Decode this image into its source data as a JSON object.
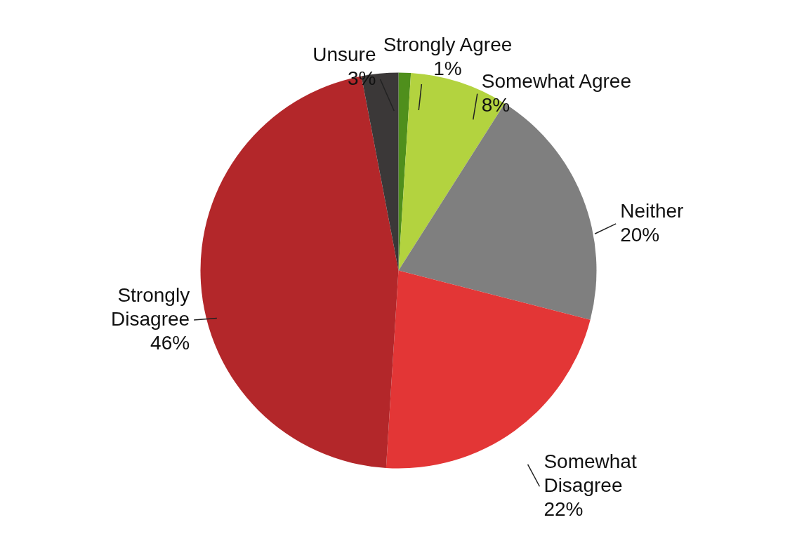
{
  "chart_data": {
    "type": "pie",
    "categories": [
      "Strongly Agree",
      "Somewhat Agree",
      "Neither",
      "Somewhat Disagree",
      "Strongly Disagree",
      "Unsure"
    ],
    "values": [
      1,
      8,
      20,
      22,
      46,
      3
    ],
    "value_labels": [
      "1%",
      "8%",
      "20%",
      "22%",
      "46%",
      "3%"
    ],
    "colors": [
      "#4f8f1c",
      "#b3d33f",
      "#7f7f7f",
      "#e33636",
      "#b3272a",
      "#3b3838"
    ]
  }
}
